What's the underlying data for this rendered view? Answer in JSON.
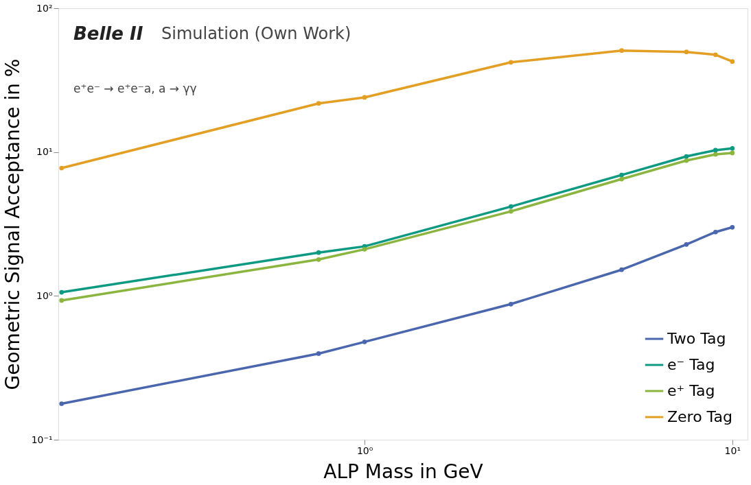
{
  "chart_data": {
    "type": "line",
    "xlabel": "ALP Mass in GeV",
    "ylabel": "Geometric Signal Acceptance in %",
    "annotations": [
      "Belle II",
      "Simulation (Own Work)",
      "e⁺e⁻ → e⁺e⁻a, a → γγ"
    ],
    "x": [
      0.15,
      0.75,
      1.0,
      2.5,
      5.0,
      7.5,
      9.0,
      10.0
    ],
    "series": [
      {
        "name": "Two Tag",
        "color": "#4a66ad",
        "values": [
          0.178,
          0.397,
          0.479,
          0.877,
          1.52,
          2.28,
          2.78,
          3.0
        ]
      },
      {
        "name": "e⁻ Tag",
        "color": "#0e9a82",
        "values": [
          1.06,
          2.0,
          2.21,
          4.18,
          6.93,
          9.33,
          10.3,
          10.6
        ]
      },
      {
        "name": "e⁺ Tag",
        "color": "#8bb53f",
        "values": [
          0.93,
          1.79,
          2.11,
          3.87,
          6.49,
          8.73,
          9.64,
          9.86
        ]
      },
      {
        "name": "Zero Tag",
        "color": "#e39f24",
        "values": [
          7.74,
          21.8,
          24.0,
          42.1,
          50.8,
          49.7,
          47.5,
          42.6
        ]
      }
    ],
    "log": "xy",
    "xlim": [
      0.147,
      11
    ],
    "ylim": [
      0.1,
      100
    ],
    "xticks": [
      {
        "value": 1,
        "label": "10⁰"
      },
      {
        "value": 10,
        "label": "10¹"
      }
    ],
    "yticks": [
      {
        "value": 0.1,
        "label": "10⁻¹"
      },
      {
        "value": 1,
        "label": "10⁰"
      },
      {
        "value": 10,
        "label": "10¹"
      },
      {
        "value": 100,
        "label": "10²"
      }
    ],
    "grid": false,
    "legend": "bottom right",
    "marker": "circle",
    "line_style": "solid"
  }
}
